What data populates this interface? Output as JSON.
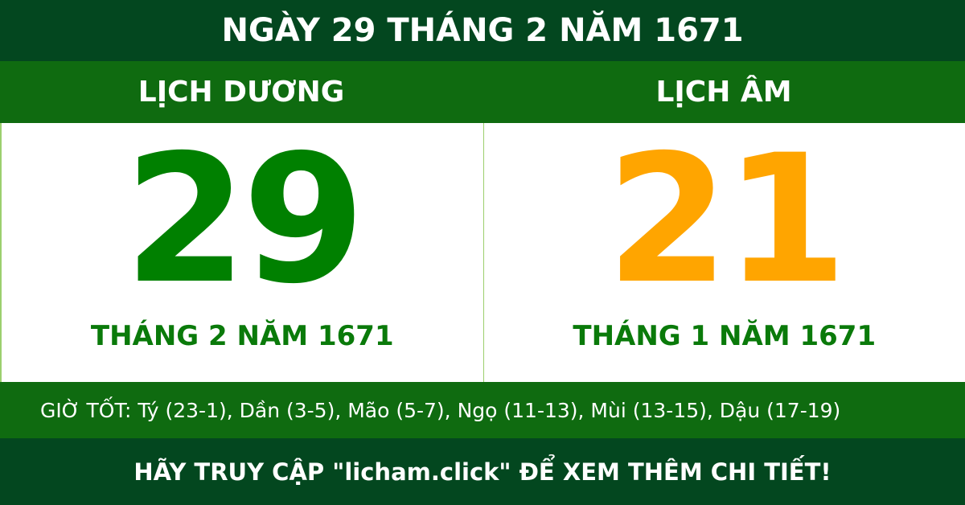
{
  "title": "NGÀY 29 THÁNG 2 NĂM 1671",
  "solar": {
    "label": "LỊCH DƯƠNG",
    "day": "29",
    "month_year": "THÁNG 2 NĂM 1671"
  },
  "lunar": {
    "label": "LỊCH ÂM",
    "day": "21",
    "month_year": "THÁNG 1 NĂM 1671"
  },
  "good_hours": "GIỜ TỐT: Tý (23-1), Dần (3-5), Mão (5-7), Ngọ (11-13), Mùi (13-15), Dậu (17-19)",
  "footer": "HÃY TRUY CẬP \"licham.click\" ĐỂ XEM THÊM CHI TIẾT!",
  "colors": {
    "dark_green": "#03471f",
    "green": "#0f6b10",
    "solar_day": "#008000",
    "lunar_day": "#ffa500"
  }
}
